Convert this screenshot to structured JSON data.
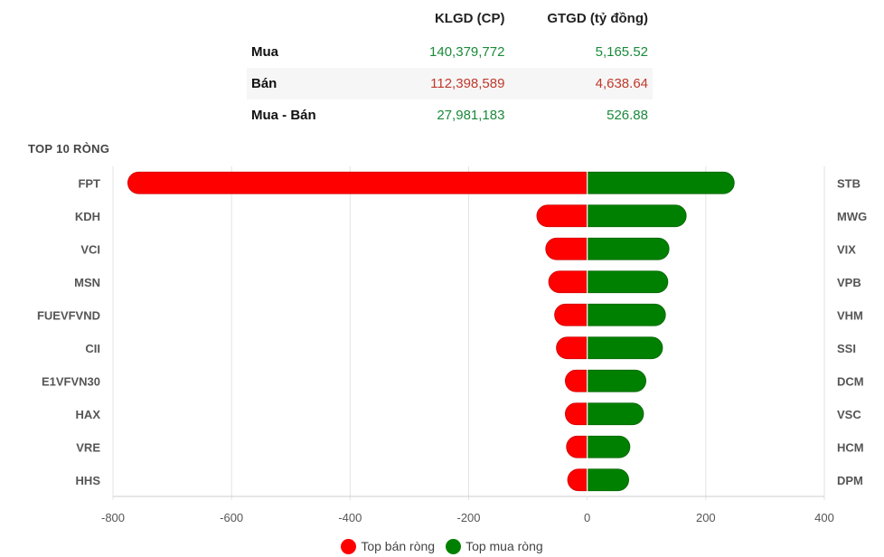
{
  "summary": {
    "headers": [
      "KLGD (CP)",
      "GTGD (tỷ đồng)"
    ],
    "rows": [
      {
        "label": "Mua",
        "klgd": "140,379,772",
        "gtgd": "5,165.52",
        "color": "#1a8a3a"
      },
      {
        "label": "Bán",
        "klgd": "112,398,589",
        "gtgd": "4,638.64",
        "color": "#c0392b"
      },
      {
        "label": "Mua - Bán",
        "klgd": "27,981,183",
        "gtgd": "526.88",
        "color": "#1a8a3a"
      }
    ]
  },
  "chart_data": {
    "type": "bar",
    "title": "TOP 10 RÒNG",
    "xlim": [
      -800,
      400
    ],
    "xticks": [
      -800,
      -600,
      -400,
      -200,
      0,
      200,
      400
    ],
    "grid": true,
    "legend_placement": "bottom",
    "sell_color": "#ff0000",
    "buy_color": "#008000",
    "series": [
      {
        "name": "Top bán ròng",
        "categories": [
          "FPT",
          "KDH",
          "VCI",
          "MSN",
          "FUEVFVND",
          "CII",
          "E1VFVN30",
          "HAX",
          "VRE",
          "HHS"
        ],
        "values": [
          -775,
          -85,
          -70,
          -65,
          -55,
          -52,
          -37,
          -37,
          -35,
          -33
        ]
      },
      {
        "name": "Top mua ròng",
        "categories": [
          "STB",
          "MWG",
          "VIX",
          "VPB",
          "VHM",
          "SSI",
          "DCM",
          "VSC",
          "HCM",
          "DPM"
        ],
        "values": [
          248,
          167,
          138,
          136,
          132,
          127,
          99,
          95,
          72,
          70
        ]
      }
    ]
  }
}
